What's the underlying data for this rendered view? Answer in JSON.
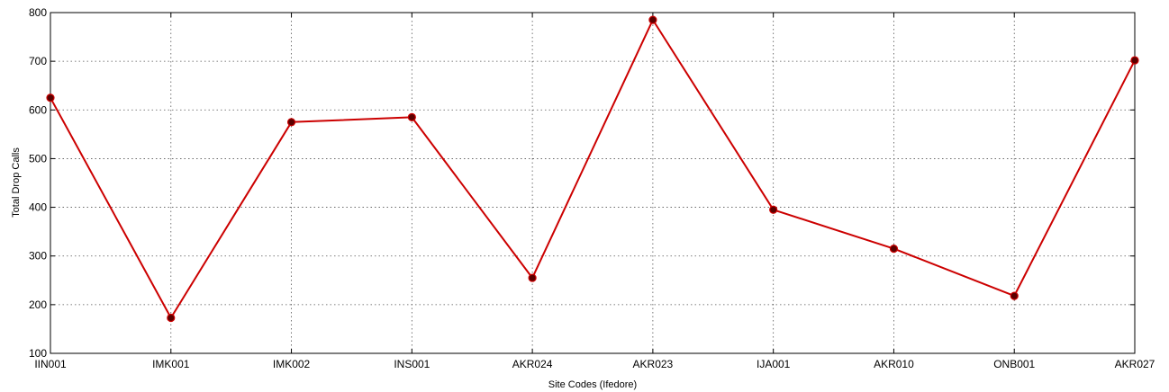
{
  "chart_data": {
    "type": "line",
    "title": "",
    "xlabel": "Site Codes (Ifedore)",
    "ylabel": "Total Drop Calls",
    "categories": [
      "IIN001",
      "IMK001",
      "IMK002",
      "INS001",
      "AKR024",
      "AKR023",
      "IJA001",
      "AKR010",
      "ONB001",
      "AKR027"
    ],
    "series": [
      {
        "values": [
          625,
          173,
          575,
          585,
          255,
          785,
          395,
          315,
          218,
          702
        ],
        "color": "#cc0000",
        "marker_color": "#5a0000"
      }
    ],
    "ylim": [
      100,
      800
    ],
    "yticks": [
      100,
      200,
      300,
      400,
      500,
      600,
      700,
      800
    ],
    "grid": true
  }
}
